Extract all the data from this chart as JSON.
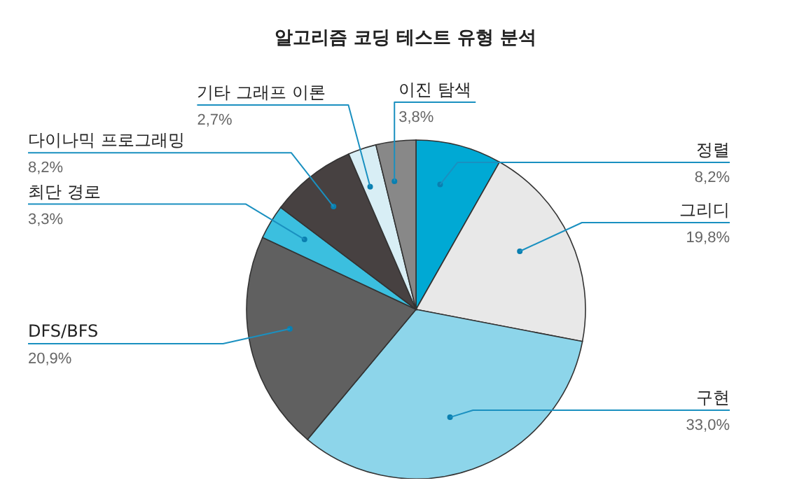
{
  "chart_data": {
    "type": "pie",
    "title": "알고리즘 코딩 테스트 유형 분석",
    "categories": [
      "정렬",
      "그리디",
      "구현",
      "DFS/BFS",
      "최단 경로",
      "다이나믹 프로그래밍",
      "기타 그래프 이론",
      "이진 탐색"
    ],
    "values": [
      8.2,
      19.8,
      33.0,
      20.9,
      3.3,
      8.2,
      2.7,
      3.8
    ],
    "value_labels": [
      "8,2%",
      "19,8%",
      "33,0%",
      "20,9%",
      "3,3%",
      "8,2%",
      "2,7%",
      "3,8%"
    ],
    "colors": [
      "#00a9d4",
      "#e8e8e8",
      "#8dd5ea",
      "#606060",
      "#3bbfdf",
      "#474141",
      "#d8eef5",
      "#888888"
    ]
  }
}
